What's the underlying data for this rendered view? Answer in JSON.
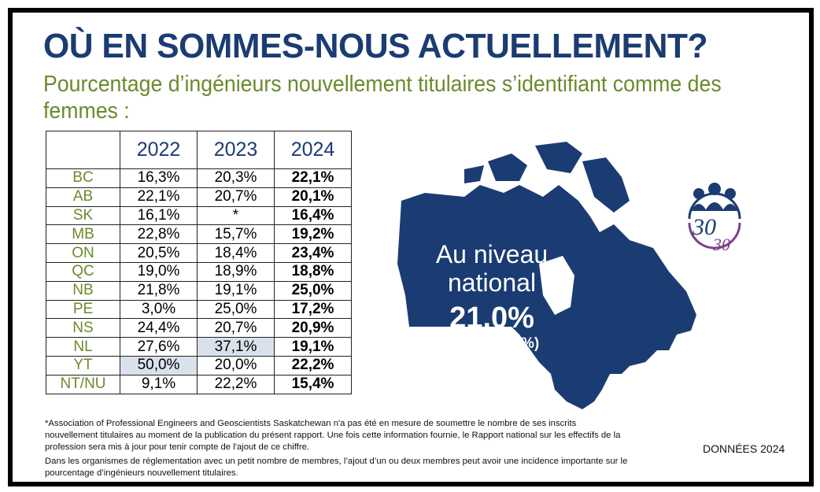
{
  "title": "OÙ EN SOMMES-NOUS ACTUELLEMENT?",
  "subtitle": "Pourcentage d’ingénieurs nouvellement titulaires s’identifiant comme des femmes :",
  "table": {
    "headers": [
      "",
      "2022",
      "2023",
      "2024"
    ],
    "rows": [
      {
        "prov": "BC",
        "v": [
          "16,3%",
          "20,3%",
          "22,1%"
        ]
      },
      {
        "prov": "AB",
        "v": [
          "22,1%",
          "20,7%",
          "20,1%"
        ]
      },
      {
        "prov": "SK",
        "v": [
          "16,1%",
          "*",
          "16,4%"
        ]
      },
      {
        "prov": "MB",
        "v": [
          "22,8%",
          "15,7%",
          "19,2%"
        ]
      },
      {
        "prov": "ON",
        "v": [
          "20,5%",
          "18,4%",
          "23,4%"
        ]
      },
      {
        "prov": "QC",
        "v": [
          "19,0%",
          "18,9%",
          "18,8%"
        ]
      },
      {
        "prov": "NB",
        "v": [
          "21,8%",
          "19,1%",
          "25,0%"
        ]
      },
      {
        "prov": "PE",
        "v": [
          "3,0%",
          "25,0%",
          "17,2%"
        ]
      },
      {
        "prov": "NS",
        "v": [
          "24,4%",
          "20,7%",
          "20,9%"
        ]
      },
      {
        "prov": "NL",
        "v": [
          "27,6%",
          "37,1%",
          "19,1%"
        ]
      },
      {
        "prov": "YT",
        "v": [
          "50,0%",
          "20,0%",
          "22,2%"
        ]
      },
      {
        "prov": "NT/NU",
        "v": [
          "9,1%",
          "22,2%",
          "15,4%"
        ]
      }
    ]
  },
  "national": {
    "line1": "Au niveau",
    "line2": "national",
    "value": "21,0%",
    "previous": "(2023: 18,7%)"
  },
  "logo": {
    "text": "30 by en 30"
  },
  "notes": {
    "asterisk": "*Association of Professional Engineers and Geoscientists Saskatchewan n'a pas été en mesure de soumettre le nombre de ses inscrits nouvellement titulaires au moment de la publication du présent rapport. Une fois cette information fournie, le Rapport national sur les effectifs de la profession sera mis à jour pour tenir compte de l'ajout de ce chiffre.",
    "small_orgs": "Dans les organismes de réglementation avec un petit nombre de membres, l’ajout d’un ou deux membres peut avoir une incidence importante sur le pourcentage d’ingénieurs nouvellement titulaires."
  },
  "data_label": "DONNÉES 2024",
  "colors": {
    "navy": "#1b3c73",
    "green": "#6b8a2e",
    "highlight": "#d9e1ec",
    "purple": "#7b3f8c"
  }
}
